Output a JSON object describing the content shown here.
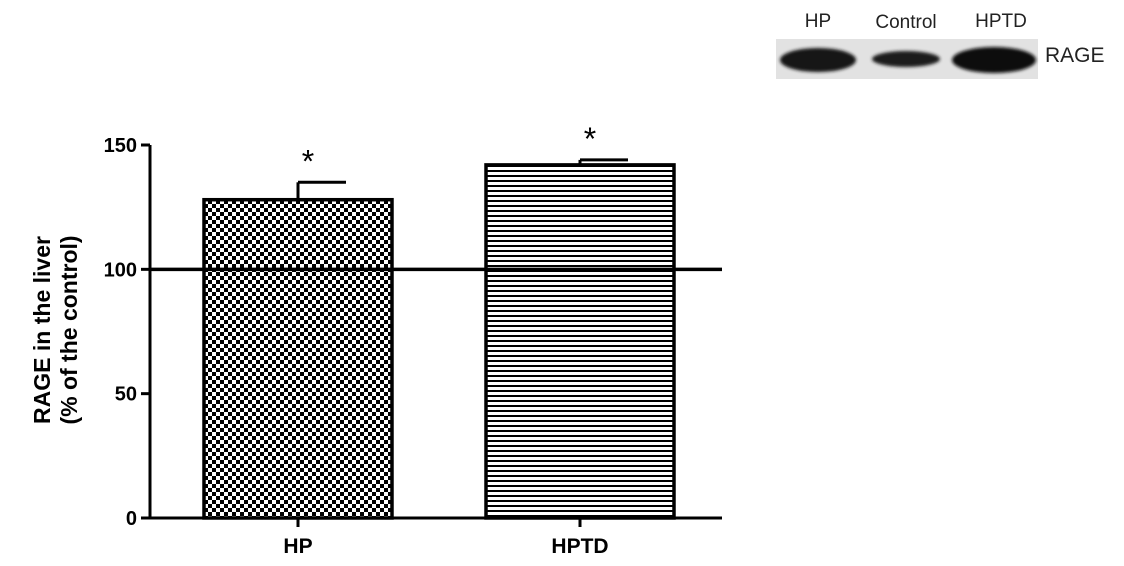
{
  "chart_data": {
    "type": "bar",
    "categories": [
      "HP",
      "HPTD"
    ],
    "values": [
      128,
      142
    ],
    "errors": [
      7,
      2
    ],
    "patterns": [
      "checkerboard",
      "horizontal-lines"
    ],
    "significance": [
      "*",
      "*"
    ],
    "reference_line": 100,
    "ylabel_line1": "RAGE in the liver",
    "ylabel_line2": "(% of the control)",
    "ylim": [
      0,
      150
    ],
    "yticks": [
      0,
      50,
      100,
      150
    ],
    "ytick_labels": [
      "0",
      "50",
      "100",
      "150"
    ],
    "grid": false,
    "legend": "none"
  },
  "blot": {
    "lane_labels": [
      "HP",
      "Control",
      "HPTD"
    ],
    "protein_label": "RAGE"
  }
}
